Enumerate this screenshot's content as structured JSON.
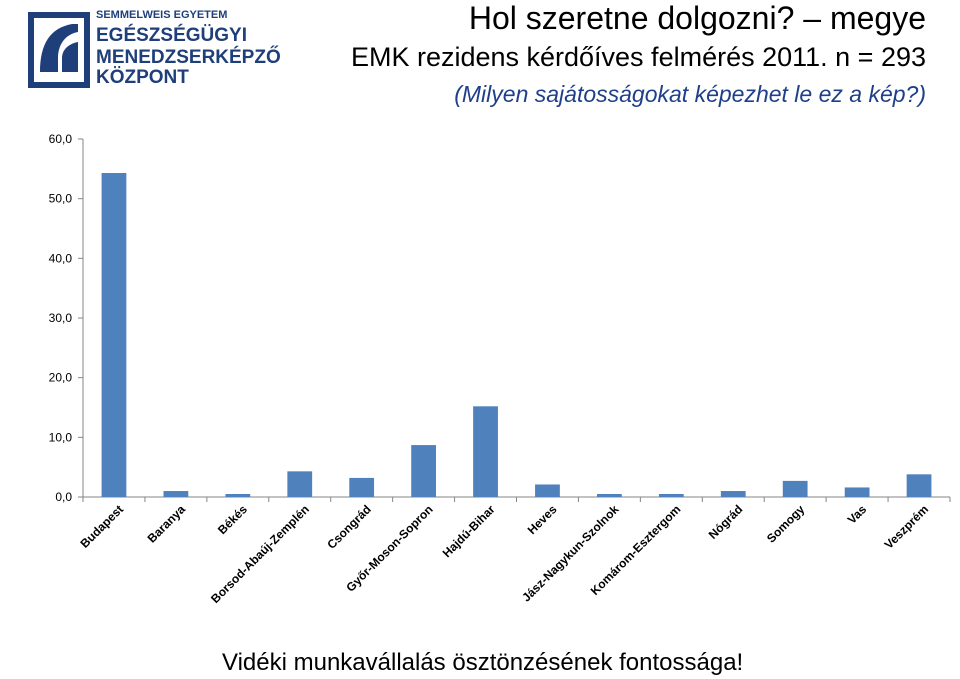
{
  "logo": {
    "line1": "SEMMELWEIS EGYETEM",
    "line2": "EGÉSZSÉGÜGYI",
    "line3": "MENEDZSERKÉPZŐ",
    "line4": "KÖZPONT",
    "color": "#1f3f7a"
  },
  "header": {
    "title": "Hol szeretne dolgozni? – megye",
    "subtitle": "EMK rezidens kérdőíves felmérés 2011. n = 293",
    "note": "(Milyen sajátosságokat képezhet le ez a kép?)"
  },
  "footer": {
    "text": "Vidéki munkavállalás ösztönzésének fontossága!"
  },
  "chart_data": {
    "type": "bar",
    "categories": [
      "Budapest",
      "Baranya",
      "Békés",
      "Borsod-Abaúj-Zemplén",
      "Csongrád",
      "Győr-Moson-Sopron",
      "Hajdú-Bihar",
      "Heves",
      "Jász-Nagykun-Szolnok",
      "Komárom-Esztergom",
      "Nógrád",
      "Somogy",
      "Vas",
      "Veszprém"
    ],
    "values": [
      54.3,
      1.0,
      0.5,
      4.3,
      3.2,
      8.7,
      15.2,
      2.1,
      0.5,
      0.5,
      1.0,
      2.7,
      1.6,
      3.8
    ],
    "ylim": [
      0,
      60
    ],
    "yticks": [
      "0,0",
      "10,0",
      "20,0",
      "30,0",
      "40,0",
      "50,0",
      "60,0"
    ],
    "bar_color": "#4f81bd",
    "grid": false,
    "legend": "none"
  }
}
